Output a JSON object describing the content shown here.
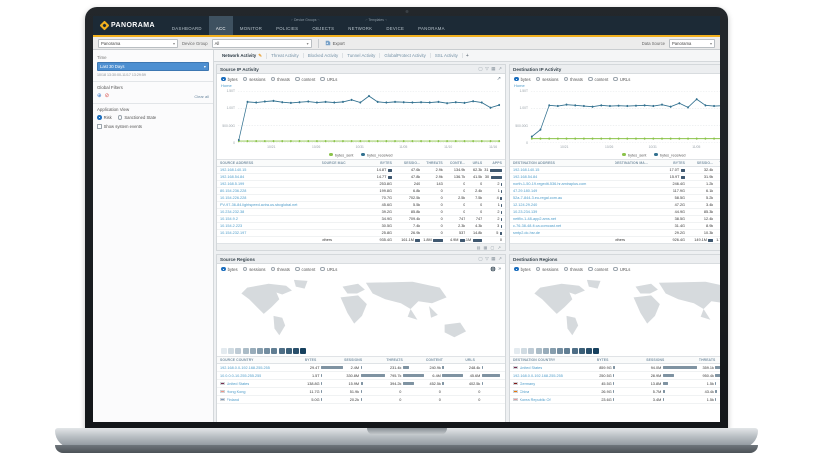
{
  "navbar": {
    "logo_text": "PANORAMA",
    "items": [
      {
        "label": "DASHBOARD",
        "active": false,
        "group": null
      },
      {
        "label": "ACC",
        "active": true,
        "group": null
      },
      {
        "label": "MONITOR",
        "active": false,
        "group": null
      },
      {
        "label": "POLICIES",
        "active": false,
        "group": "device_groups"
      },
      {
        "label": "OBJECTS",
        "active": false,
        "group": "device_groups"
      },
      {
        "label": "NETWORK",
        "active": false,
        "group": "templates"
      },
      {
        "label": "DEVICE",
        "active": false,
        "group": "templates"
      },
      {
        "label": "PANORAMA",
        "active": false,
        "group": null
      }
    ],
    "device_groups_label": "Device Groups",
    "templates_label": "Templates"
  },
  "toolbar": {
    "context_value": "Panorama",
    "device_group_label": "Device Group",
    "device_group_value": "All",
    "export_label": "Export",
    "data_source_label": "Data Source",
    "data_source_value": "Panorama"
  },
  "sidebar": {
    "time_label": "Time",
    "time_value": "Last 30 Days",
    "time_range": "10/18 13:30:00-11/17 13:29:59",
    "global_filters_label": "Global Filters",
    "clear_all_label": "Clear all",
    "application_view_label": "Application View",
    "risk_label": "Risk",
    "sanctioned_label": "Sanctioned State",
    "show_system_events_label": "Show system events"
  },
  "tabs": {
    "items": [
      "Network Activity",
      "Threat Activity",
      "Blocked Activity",
      "Tunnel Activity",
      "GlobalProtect Activity",
      "SSL Activity"
    ],
    "active": "Network Activity",
    "add_label": "+"
  },
  "metrics": {
    "options": [
      "bytes",
      "sessions",
      "threats",
      "content",
      "URLs"
    ],
    "selected": "bytes",
    "home_label": "Home"
  },
  "panels": {
    "source_ip_title": "Source IP Activity",
    "destination_ip_title": "Destination IP Activity",
    "source_regions_title": "Source Regions",
    "destination_regions_title": "Destination Regions"
  },
  "chart_data": [
    {
      "type": "line",
      "title": "Source IP Activity bytes over time",
      "ylim": [
        0,
        1.5
      ],
      "y_ticks": [
        {
          "label": "1.50T",
          "v": 1.5
        },
        {
          "label": "1.00T",
          "v": 1.0
        },
        {
          "label": "500.00G",
          "v": 0.5
        },
        {
          "label": "0",
          "v": 0
        }
      ],
      "x_ticks": [
        {
          "label": "10/21",
          "f": 0.13
        },
        {
          "label": "10/26",
          "f": 0.3
        },
        {
          "label": "10/31",
          "f": 0.465
        },
        {
          "label": "11/05",
          "f": 0.63
        },
        {
          "label": "11/10",
          "f": 0.8
        },
        {
          "label": "11/16",
          "f": 0.97
        }
      ],
      "series": [
        {
          "name": "bytes_sent",
          "color": "#8bc34a",
          "values": [
            0.05,
            0.05,
            0.05,
            0.05,
            0.05,
            0.05,
            0.05,
            0.05,
            0.05,
            0.05,
            0.05,
            0.05,
            0.05,
            0.05,
            0.05,
            0.05,
            0.05,
            0.05,
            0.05,
            0.05,
            0.05,
            0.05,
            0.05,
            0.05,
            0.05,
            0.05,
            0.05,
            0.05,
            0.05,
            0.05,
            0.05
          ]
        },
        {
          "name": "bytes_received",
          "color": "#31708f",
          "values": [
            0.08,
            1.19,
            1.17,
            1.2,
            1.22,
            1.18,
            1.16,
            1.18,
            1.2,
            1.17,
            1.19,
            1.17,
            1.19,
            1.25,
            1.17,
            1.36,
            1.19,
            1.17,
            1.19,
            1.18,
            1.17,
            1.18,
            1.17,
            1.19,
            1.15,
            1.18,
            1.16,
            1.21,
            1.17,
            1.02,
            1.1
          ]
        }
      ]
    },
    {
      "type": "line",
      "title": "Destination IP Activity bytes over time",
      "ylim": [
        0,
        1.5
      ],
      "y_ticks": [
        {
          "label": "1.50T",
          "v": 1.5
        },
        {
          "label": "1.00T",
          "v": 1.0
        },
        {
          "label": "500.00G",
          "v": 0.5
        },
        {
          "label": "0",
          "v": 0
        }
      ],
      "x_ticks": [
        {
          "label": "10/21",
          "f": 0.13
        },
        {
          "label": "10/26",
          "f": 0.3
        },
        {
          "label": "10/31",
          "f": 0.465
        },
        {
          "label": "11/05",
          "f": 0.63
        },
        {
          "label": "11/10",
          "f": 0.8
        },
        {
          "label": "11/16",
          "f": 0.97
        }
      ],
      "series": [
        {
          "name": "bytes_sent",
          "color": "#8bc34a",
          "values": [
            0.12,
            0.12,
            0.12,
            0.12,
            0.12,
            0.12,
            0.12,
            0.12,
            0.12,
            0.12,
            0.12,
            0.12,
            0.12,
            0.12,
            0.12,
            0.12,
            0.12,
            0.12,
            0.12,
            0.12,
            0.12,
            0.12,
            0.12,
            0.12,
            0.12,
            0.12,
            0.12,
            0.12,
            0.12,
            0.12,
            0.12
          ]
        },
        {
          "name": "bytes_received",
          "color": "#31708f",
          "values": [
            0.18,
            0.38,
            1.09,
            1.07,
            1.11,
            1.09,
            1.07,
            1.05,
            1.09,
            1.07,
            1.08,
            1.07,
            1.08,
            1.09,
            1.07,
            1.11,
            1.05,
            1.15,
            1.03,
            1.27,
            1.09,
            1.07,
            1.08,
            1.07,
            1.08,
            1.07,
            1.08,
            1.09,
            1.07,
            1.08,
            1.08
          ]
        }
      ]
    }
  ],
  "tables": {
    "source_ip": {
      "columns": [
        "SOURCE ADDRESS",
        "SOURCE MAC",
        "BYTES",
        "SESSIO...",
        "THREATS",
        "CONTE...",
        "URLS",
        "APPS"
      ],
      "rows": [
        {
          "link": true,
          "cells": [
            "192.168.140.15",
            "",
            "14.8T",
            "47.6k",
            "2.9k",
            "134.9k",
            "62.3k",
            "31"
          ],
          "bars": {
            "2": 0.35,
            "7": 1.0
          }
        },
        {
          "link": true,
          "cells": [
            "192.168.54.84",
            "",
            "14.7T",
            "47.8k",
            "2.9k",
            "136.7k",
            "41.5k",
            "30"
          ],
          "bars": {
            "2": 0.34,
            "7": 0.95
          }
        },
        {
          "link": true,
          "cells": [
            "192.168.5.199",
            "",
            "253.8G",
            "240",
            "143",
            "0",
            "0",
            "2"
          ],
          "bars": {
            "7": 0.08
          }
        },
        {
          "link": true,
          "cells": [
            "80.154.236.228",
            "",
            "199.8G",
            "6.8k",
            "0",
            "0",
            "2.4k",
            "1"
          ],
          "bars": {
            "7": 0.05
          }
        },
        {
          "link": true,
          "cells": [
            "10.154.226.228",
            "",
            "70.7G",
            "702.5k",
            "0",
            "2.5k",
            "7.5k",
            "4"
          ],
          "bars": {
            "7": 0.15
          }
        },
        {
          "link": true,
          "cells": [
            "PV-97-36-84.lightspeed.avira.us.sbcglobal.net",
            "",
            "45.6G",
            "5.5k",
            "0",
            "0",
            "0",
            "1"
          ],
          "bars": {
            "7": 0.05
          }
        },
        {
          "link": true,
          "cells": [
            "10.234.232.38",
            "",
            "39.2G",
            "85.8k",
            "0",
            "0",
            "0",
            "2"
          ],
          "bars": {
            "7": 0.08
          }
        },
        {
          "link": true,
          "cells": [
            "10.154.9.2",
            "",
            "34.9G",
            "709.4k",
            "0",
            "747",
            "747",
            "2"
          ],
          "bars": {
            "7": 0.08
          }
        },
        {
          "link": true,
          "cells": [
            "10.154.2.223",
            "",
            "30.5G",
            "7.4k",
            "0",
            "2.3k",
            "4.3k",
            "3"
          ],
          "bars": {
            "7": 0.1
          }
        },
        {
          "link": true,
          "cells": [
            "10.154.232.197",
            "",
            "25.8G",
            "26.9k",
            "0",
            "537",
            "14.8k",
            "5"
          ],
          "bars": {
            "7": 0.18
          }
        },
        {
          "link": false,
          "cells": [
            "",
            "others",
            "935.4G",
            "161.1M",
            "1.8M",
            "4.9M",
            "47.1M",
            "0"
          ],
          "bars": {
            "3": 0.4,
            "4": 0.8,
            "5": 0.45,
            "6": 0.8
          }
        }
      ]
    },
    "destination_ip": {
      "columns": [
        "DESTINATION ADDRESS",
        "DESTINATION MA...",
        "BYTES",
        "SESSIO...",
        "THREATS",
        "CONTE...",
        "URLS",
        "APPS"
      ],
      "rows": [
        {
          "link": true,
          "cells": [
            "192.168.140.15",
            "",
            "17.0T",
            "32.4k",
            "2.8k",
            "130.2k",
            "60.1k",
            "30"
          ],
          "bars": {
            "2": 0.36,
            "7": 1.0
          }
        },
        {
          "link": true,
          "cells": [
            "192.168.54.84",
            "",
            "15.9T",
            "31.9k",
            "2.8k",
            "131.6k",
            "40.2k",
            "29"
          ],
          "bars": {
            "2": 0.34,
            "7": 0.95
          }
        },
        {
          "link": true,
          "cells": [
            "north-1-50-19.regedit-536.hr.amiraplus.com",
            "",
            "246.4G",
            "1.2k",
            "0",
            "0",
            "0",
            "2"
          ],
          "bars": {
            "7": 0.08
          }
        },
        {
          "link": true,
          "cells": [
            "47.29.180.149",
            "",
            "117.9G",
            "6.1k",
            "0",
            "0",
            "2.1k",
            "1"
          ],
          "bars": {
            "7": 0.05
          }
        },
        {
          "link": true,
          "cells": [
            "52a-7-844-3.eu-regal.com.au",
            "",
            "58.5G",
            "5.2k",
            "0",
            "2.2k",
            "7.1k",
            "4"
          ],
          "bars": {
            "7": 0.15
          }
        },
        {
          "link": true,
          "cells": [
            "12.124.29.240",
            "",
            "47.2G",
            "3.4k",
            "0",
            "0",
            "0",
            "1"
          ],
          "bars": {
            "7": 0.05
          }
        },
        {
          "link": true,
          "cells": [
            "10.23.234.139",
            "",
            "44.9G",
            "85.3k",
            "0",
            "0",
            "0",
            "2"
          ],
          "bars": {
            "7": 0.08
          }
        },
        {
          "link": true,
          "cells": [
            "netflix-1-48-app2.ams.net",
            "",
            "38.5G",
            "12.4k",
            "0",
            "712",
            "712",
            "2"
          ],
          "bars": {
            "7": 0.08
          }
        },
        {
          "link": true,
          "cells": [
            "c-76-38-48-fi.ca.comcast.net",
            "",
            "31.4G",
            "8.9k",
            "0",
            "2.1k",
            "4.1k",
            "3"
          ],
          "bars": {
            "7": 0.1
          }
        },
        {
          "link": true,
          "cells": [
            "smtp2.dc-hsr.de",
            "",
            "29.2G",
            "10.3k",
            "0",
            "498",
            "13.9k",
            "5"
          ],
          "bars": {
            "7": 0.18
          }
        },
        {
          "link": false,
          "cells": [
            "",
            "others",
            "926.4G",
            "149.1M",
            "1.7M",
            "4.6M",
            "45.8M",
            "0"
          ],
          "bars": {
            "3": 0.4,
            "4": 0.8,
            "5": 0.45,
            "6": 0.8
          }
        }
      ]
    },
    "source_country": {
      "columns": [
        "SOURCE COUNTRY",
        "BYTES",
        "SESSIONS",
        "THREATS",
        "CONTENT",
        "URLS"
      ],
      "rows": [
        {
          "flag": null,
          "link": true,
          "cells": [
            "192.168.0.0-192.168.255.255",
            "29.4T",
            "2.4M",
            "231.4k",
            "240.9k",
            "248.4k"
          ],
          "bars": [
            0.95,
            0.03,
            0.28,
            0.05,
            0.02
          ]
        },
        {
          "flag": null,
          "link": true,
          "cells": [
            "10.0.0.0-10.255.255.255",
            "1.5T",
            "330.8M",
            "795.7k",
            "6.4M",
            "45.6M"
          ],
          "bars": [
            0.04,
            0.95,
            0.92,
            0.92,
            0.92
          ]
        },
        {
          "flag": "us",
          "link": true,
          "cells": [
            "United States",
            "138.8G",
            "15.9M",
            "394.2k",
            "452.5k",
            "402.5k"
          ],
          "bars": [
            0.02,
            0.1,
            0.48,
            0.08,
            0.04
          ]
        },
        {
          "flag": "hk",
          "link": true,
          "cells": [
            "Hong Kong",
            "11.7G",
            "51.9k",
            "0",
            "0",
            "0"
          ],
          "bars": [
            0.01,
            0.01,
            0,
            0,
            0
          ]
        },
        {
          "flag": "fi",
          "link": true,
          "cells": [
            "Finland",
            "5.0G",
            "20.2k",
            "0",
            "0",
            "0"
          ],
          "bars": [
            0.01,
            0.01,
            0,
            0,
            0
          ]
        }
      ]
    },
    "destination_country": {
      "columns": [
        "DESTINATION COUNTRY",
        "BYTES",
        "SESSIONS",
        "THREATS",
        "CONTENT"
      ],
      "rows": [
        {
          "flag": "us",
          "link": true,
          "cells": [
            "United States",
            "859.9G",
            "94.0M",
            "359.1k",
            "360.5k"
          ],
          "bars": [
            0.05,
            0.95,
            0.38,
            0.3
          ]
        },
        {
          "flag": null,
          "link": true,
          "cells": [
            "192.168.0.0-192.168.255.255",
            "250.5G",
            "28.9M",
            "950.4k",
            "434.1k"
          ],
          "bars": [
            0.02,
            0.3,
            0.92,
            0.35
          ]
        },
        {
          "flag": "de",
          "link": true,
          "cells": [
            "Germany",
            "45.5G",
            "13.8M",
            "1.5k",
            "30.2k"
          ],
          "bars": [
            0.01,
            0.14,
            0.01,
            0.03
          ]
        },
        {
          "flag": "cn",
          "link": true,
          "cells": [
            "China",
            "26.9G",
            "5.7M",
            "43.4k",
            "2.1k"
          ],
          "bars": [
            0.01,
            0.06,
            0.05,
            0.01
          ]
        },
        {
          "flag": "kr",
          "link": true,
          "cells": [
            "Korea Republic Of",
            "23.6G",
            "3.4M",
            "1.5k",
            "1.4k"
          ],
          "bars": [
            0.01,
            0.03,
            0.01,
            0.01
          ]
        }
      ]
    }
  },
  "map_scale": {
    "from": "#e3eaef",
    "to": "#16405e",
    "steps": 12
  },
  "colors": {
    "accent_gold": "#f2b01e",
    "link_blue": "#4c9bc9",
    "bar_dark": "#3f5870",
    "bar_gray": "#7f93a2"
  }
}
